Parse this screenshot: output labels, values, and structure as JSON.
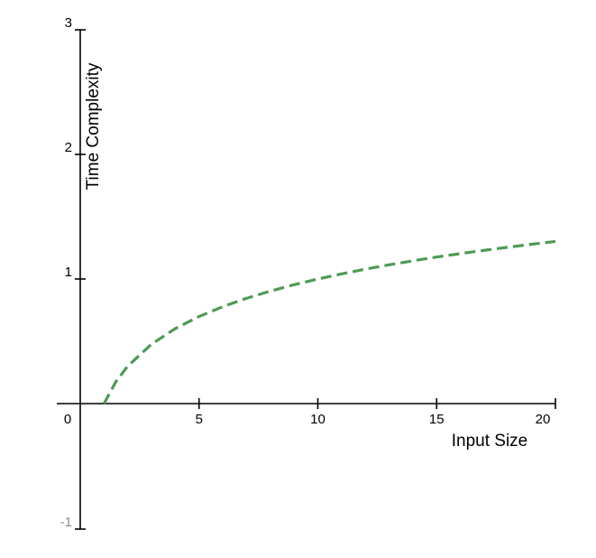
{
  "chart_data": {
    "type": "line",
    "title": "",
    "xlabel": "Input Size",
    "ylabel": "Time Complexity",
    "xlim": [
      0,
      20
    ],
    "ylim": [
      -1,
      3
    ],
    "grid": false,
    "x_ticks": [
      {
        "value": 0,
        "label": "0"
      },
      {
        "value": 5,
        "label": "5"
      },
      {
        "value": 10,
        "label": "10"
      },
      {
        "value": 15,
        "label": "15"
      },
      {
        "value": 20,
        "label": "20"
      }
    ],
    "y_ticks": [
      {
        "value": -1,
        "label": "-1"
      },
      {
        "value": 1,
        "label": "1"
      },
      {
        "value": 2,
        "label": "2"
      },
      {
        "value": 3,
        "label": "3"
      }
    ],
    "series": [
      {
        "color": "#4e9a55",
        "style": "dashed",
        "x": [
          1,
          1.5,
          2,
          3,
          4,
          5,
          6,
          7,
          8,
          9,
          10,
          11,
          12,
          13,
          14,
          15,
          16,
          17,
          18,
          19,
          20
        ],
        "y": [
          0,
          0.176,
          0.301,
          0.477,
          0.602,
          0.699,
          0.778,
          0.845,
          0.903,
          0.954,
          1.0,
          1.041,
          1.079,
          1.114,
          1.146,
          1.176,
          1.204,
          1.23,
          1.255,
          1.279,
          1.301
        ]
      }
    ]
  }
}
